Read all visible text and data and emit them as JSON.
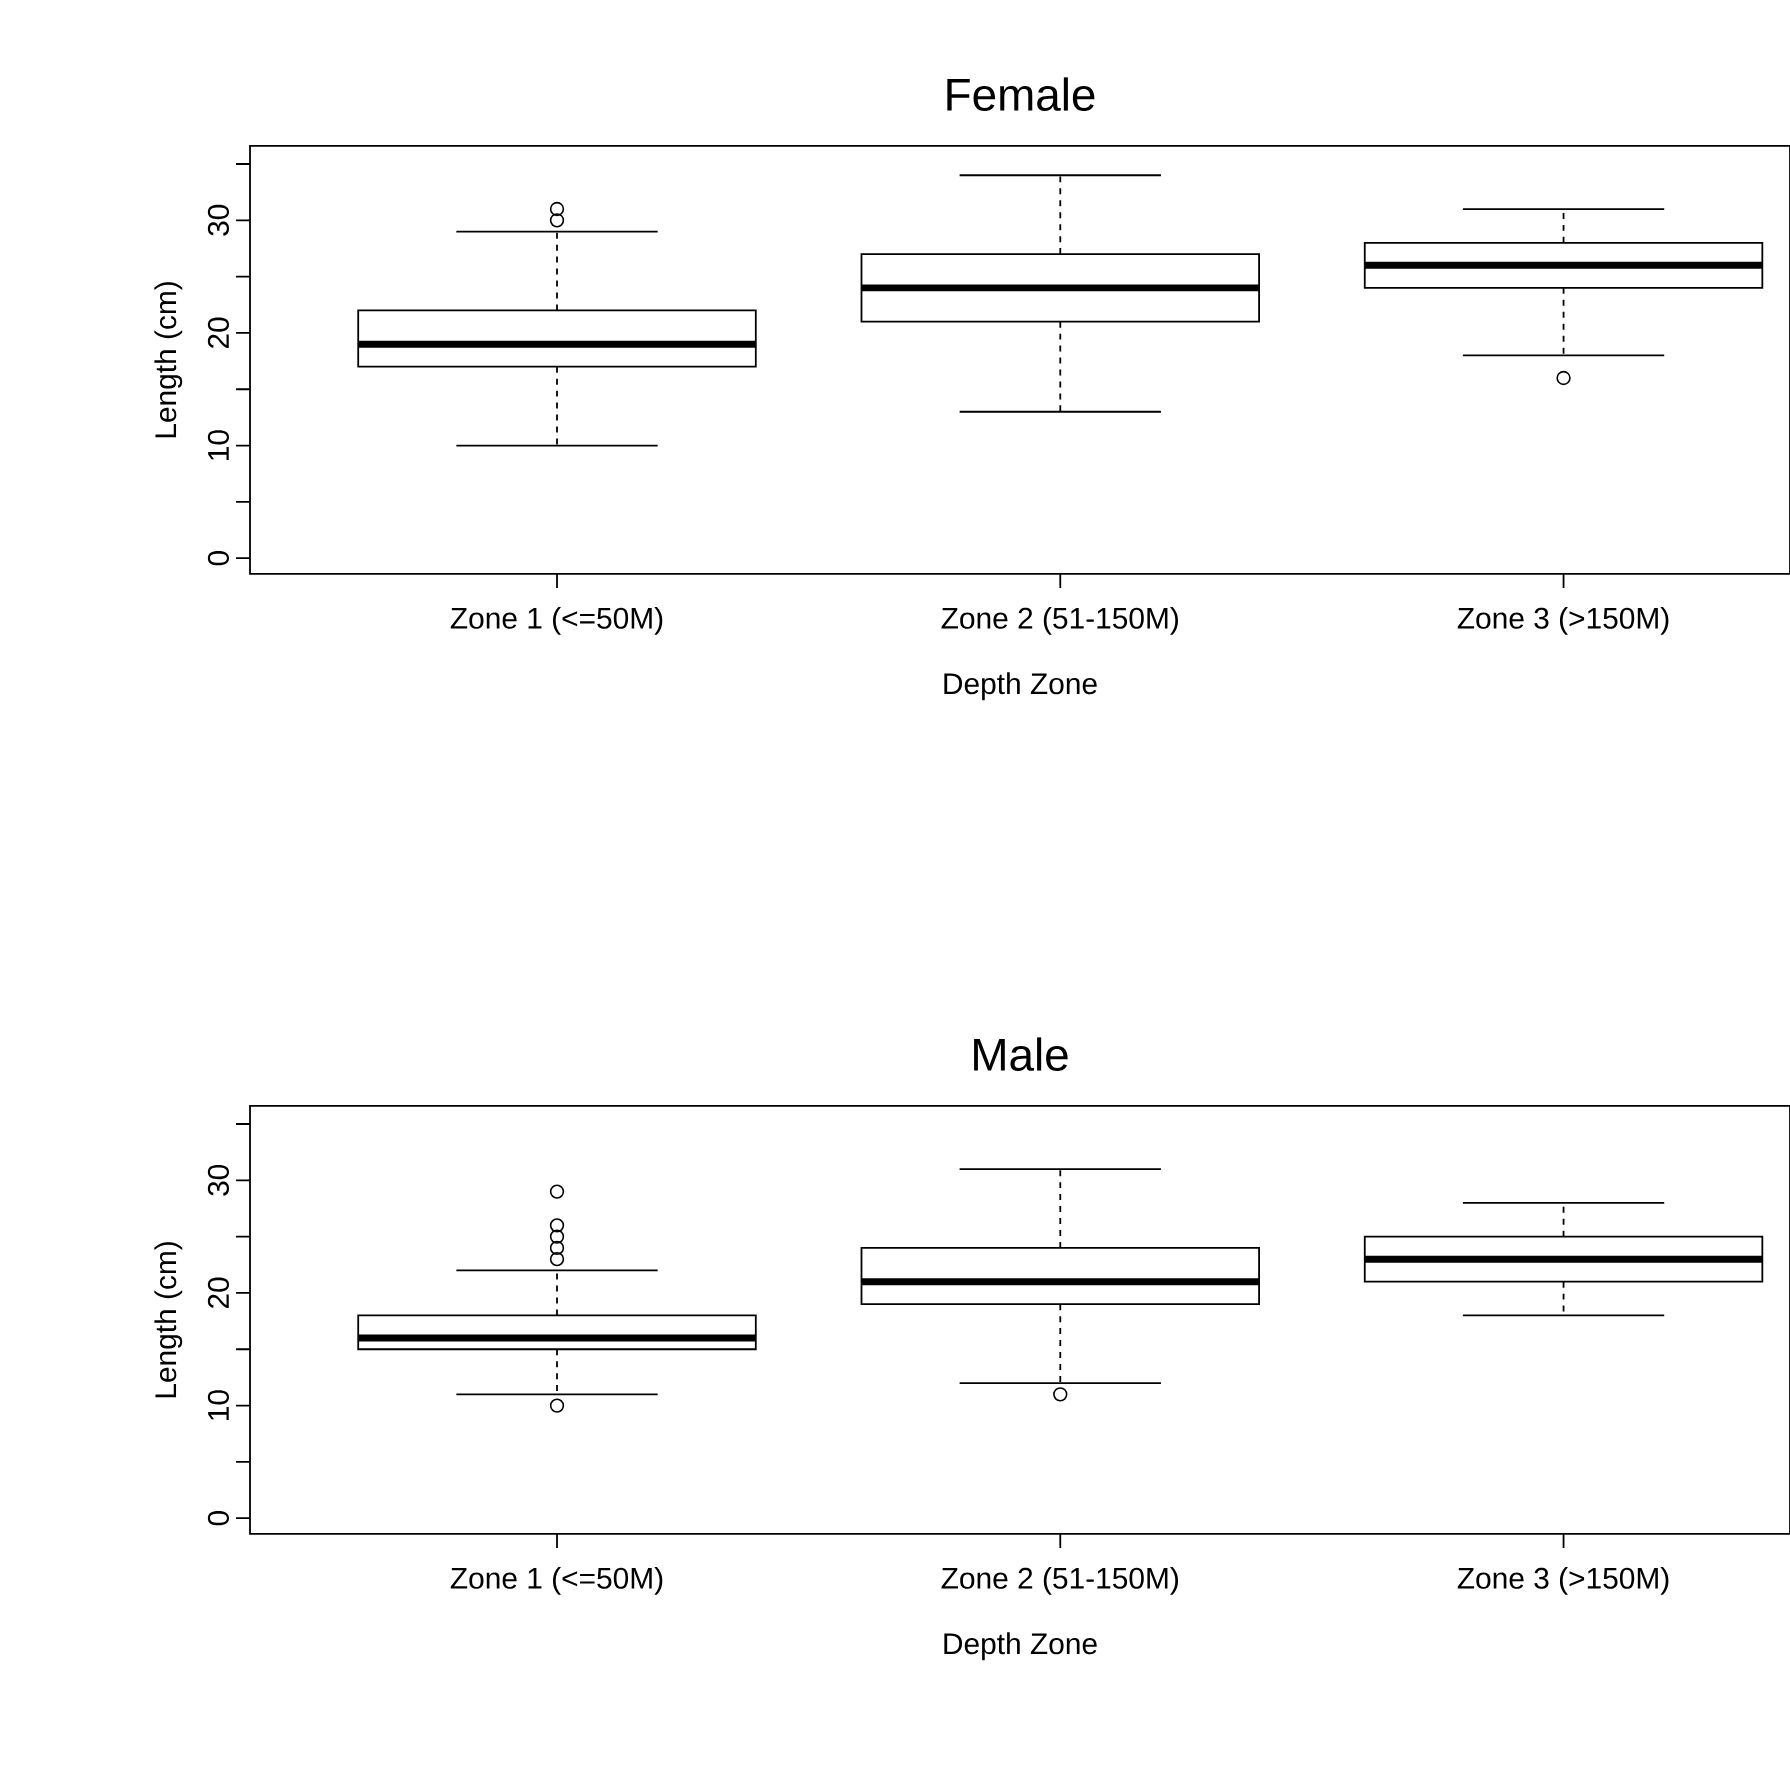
{
  "chart_data": [
    {
      "type": "box",
      "title": "Female",
      "xlabel": "Depth Zone",
      "ylabel": "Length (cm)",
      "categories": [
        "Zone 1 (<=50M)",
        "Zone 2 (51-150M)",
        "Zone 3 (>150M)"
      ],
      "boxes": [
        {
          "low": 10,
          "q1": 17,
          "median": 19,
          "q3": 22,
          "high": 29,
          "outliers": [
            30,
            31
          ]
        },
        {
          "low": 13,
          "q1": 21,
          "median": 24,
          "q3": 27,
          "high": 34
        },
        {
          "low": 18,
          "q1": 24,
          "median": 26,
          "q3": 28,
          "high": 31,
          "outliers": [
            16
          ]
        }
      ],
      "ylim": [
        -1.4,
        36.6
      ],
      "yticks": [
        0,
        {
          "value": 5,
          "label": null
        },
        10,
        {
          "value": 15,
          "label": null
        },
        20,
        {
          "value": 25,
          "label": null
        },
        30,
        {
          "value": 35,
          "label": null
        }
      ]
    },
    {
      "type": "box",
      "title": "Male",
      "xlabel": "Depth Zone",
      "ylabel": "Length (cm)",
      "categories": [
        "Zone 1 (<=50M)",
        "Zone 2 (51-150M)",
        "Zone 3 (>150M)"
      ],
      "boxes": [
        {
          "low": 11,
          "q1": 15,
          "median": 16,
          "q3": 18,
          "high": 22,
          "outliers": [
            10,
            23,
            24,
            25,
            26,
            29
          ]
        },
        {
          "low": 12,
          "q1": 19,
          "median": 21,
          "q3": 24,
          "high": 31,
          "outliers": [
            11
          ]
        },
        {
          "low": 18,
          "q1": 21,
          "median": 23,
          "q3": 25,
          "high": 28
        }
      ],
      "ylim": [
        -1.4,
        36.6
      ],
      "yticks": [
        0,
        {
          "value": 5,
          "label": null
        },
        10,
        {
          "value": 15,
          "label": null
        },
        20,
        {
          "value": 25,
          "label": null
        },
        30,
        {
          "value": 35,
          "label": null
        }
      ]
    }
  ]
}
